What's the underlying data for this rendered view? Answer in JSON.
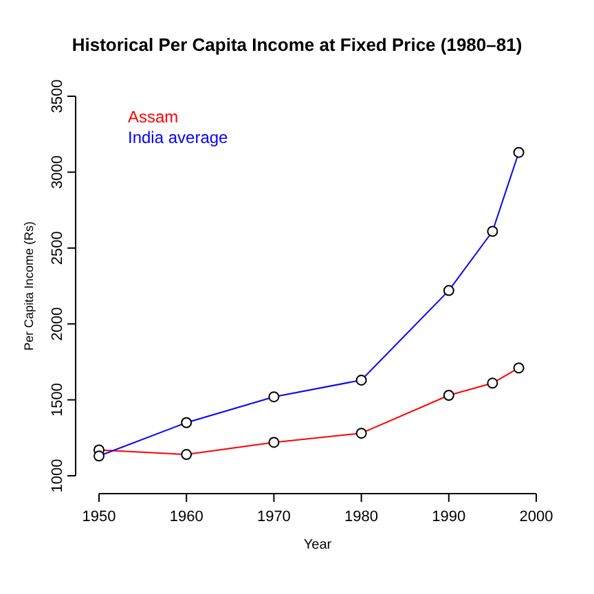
{
  "chart_data": {
    "type": "line",
    "title": "Historical Per Capita Income at Fixed Price (1980–81)",
    "xlabel": "Year",
    "ylabel": "Per Capita Income (Rs)",
    "x": [
      1950,
      1960,
      1970,
      1980,
      1990,
      1995,
      1998
    ],
    "series": [
      {
        "name": "Assam",
        "color": "#ff0000",
        "values": [
          1170,
          1140,
          1220,
          1280,
          1530,
          1610,
          1710
        ]
      },
      {
        "name": "India average",
        "color": "#0000ff",
        "values": [
          1130,
          1350,
          1520,
          1630,
          2220,
          2610,
          3130
        ]
      }
    ],
    "xlim": [
      1950,
      2000
    ],
    "xticks": [
      1950,
      1960,
      1970,
      1980,
      1990,
      2000
    ],
    "ylim": [
      1000,
      3500
    ],
    "yticks": [
      1000,
      1500,
      2000,
      2500,
      3000,
      3500
    ],
    "grid": false,
    "legend": "top left",
    "marker": "circle",
    "line_style": "solid"
  }
}
